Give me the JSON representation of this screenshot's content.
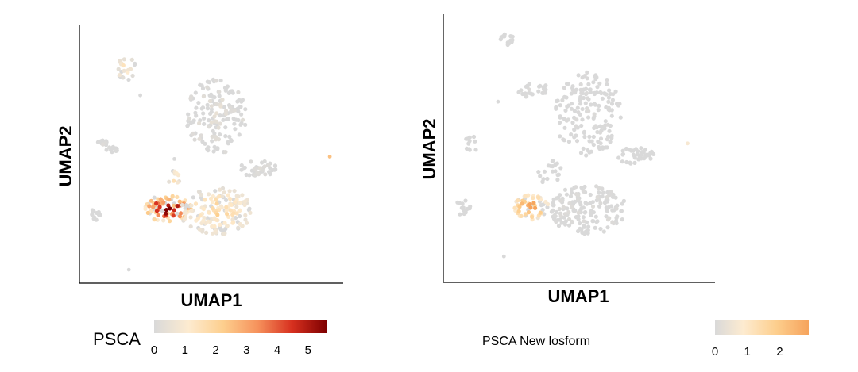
{
  "chart_data": [
    {
      "type": "scatter",
      "xlabel": "UMAP1",
      "ylabel": "UMAP2",
      "color_scale": {
        "title": "PSCA",
        "ticks": [
          "0",
          "1",
          "2",
          "3",
          "4",
          "5"
        ],
        "range": [
          0,
          5.6
        ],
        "colors": [
          "#d9d9d9",
          "#fdebd0",
          "#fdcf8e",
          "#f6925c",
          "#d7301f",
          "#7f0000"
        ]
      },
      "clusters": [
        {
          "cx": 2.2,
          "cy": 9.0,
          "rx": 0.55,
          "ry": 0.6,
          "n": 22,
          "expr": 0.9
        },
        {
          "cx": 7.0,
          "cy": 6.9,
          "rx": 1.6,
          "ry": 1.6,
          "n": 160,
          "expr": 0.35
        },
        {
          "cx": 0.9,
          "cy": 5.8,
          "rx": 0.35,
          "ry": 0.2,
          "n": 10,
          "expr": 0.2
        },
        {
          "cx": 1.5,
          "cy": 5.5,
          "rx": 0.3,
          "ry": 0.12,
          "n": 10,
          "expr": 0.1
        },
        {
          "cx": 9.2,
          "cy": 4.7,
          "rx": 1.0,
          "ry": 0.35,
          "n": 40,
          "expr": 0.15
        },
        {
          "cx": 0.7,
          "cy": 2.8,
          "rx": 0.3,
          "ry": 0.3,
          "n": 12,
          "expr": 0.0
        },
        {
          "cx": 4.4,
          "cy": 3.0,
          "rx": 1.3,
          "ry": 0.55,
          "n": 90,
          "expr": 4.2
        },
        {
          "cx": 7.0,
          "cy": 2.9,
          "rx": 1.9,
          "ry": 1.0,
          "n": 160,
          "expr": 1.4
        },
        {
          "cx": 4.8,
          "cy": 4.3,
          "rx": 0.35,
          "ry": 0.3,
          "n": 10,
          "expr": 1.6
        }
      ],
      "isolated_points": [
        {
          "x": 13.0,
          "y": 5.2,
          "v": 2.5
        },
        {
          "x": 2.4,
          "y": 0.4,
          "v": 0.0
        },
        {
          "x": 3.0,
          "y": 7.8,
          "v": 0.0
        },
        {
          "x": 4.8,
          "y": 5.1,
          "v": 0.0
        }
      ]
    },
    {
      "type": "scatter",
      "xlabel": "UMAP1",
      "ylabel": "UMAP2",
      "color_scale": {
        "caption": "PSCA New losform",
        "ticks": [
          "0",
          "1",
          "2"
        ],
        "range": [
          0,
          2.9
        ],
        "colors": [
          "#d9d9d9",
          "#fdebd0",
          "#fdcf8e",
          "#f6a35c"
        ]
      },
      "clusters": [
        {
          "cx": 3.1,
          "cy": 9.8,
          "rx": 0.45,
          "ry": 0.3,
          "n": 14,
          "expr": 0.0
        },
        {
          "cx": 4.4,
          "cy": 7.7,
          "rx": 0.8,
          "ry": 0.35,
          "n": 25,
          "expr": 0.05
        },
        {
          "cx": 7.2,
          "cy": 6.7,
          "rx": 1.7,
          "ry": 1.7,
          "n": 170,
          "expr": 0.05
        },
        {
          "cx": 1.2,
          "cy": 5.4,
          "rx": 0.3,
          "ry": 0.6,
          "n": 12,
          "expr": 0.0
        },
        {
          "cx": 9.6,
          "cy": 5.0,
          "rx": 1.0,
          "ry": 0.35,
          "n": 40,
          "expr": 0.0
        },
        {
          "cx": 0.8,
          "cy": 2.9,
          "rx": 0.4,
          "ry": 0.35,
          "n": 14,
          "expr": 0.0
        },
        {
          "cx": 4.3,
          "cy": 2.9,
          "rx": 0.9,
          "ry": 0.5,
          "n": 55,
          "expr": 2.4
        },
        {
          "cx": 7.2,
          "cy": 2.8,
          "rx": 2.0,
          "ry": 1.0,
          "n": 170,
          "expr": 0.1
        },
        {
          "cx": 5.3,
          "cy": 4.3,
          "rx": 0.7,
          "ry": 0.5,
          "n": 20,
          "expr": 0.0
        }
      ],
      "isolated_points": [
        {
          "x": 12.3,
          "y": 5.5,
          "v": 0.8
        },
        {
          "x": 2.9,
          "y": 0.9,
          "v": 0.0
        },
        {
          "x": 2.6,
          "y": 7.2,
          "v": 0.0
        }
      ]
    }
  ]
}
